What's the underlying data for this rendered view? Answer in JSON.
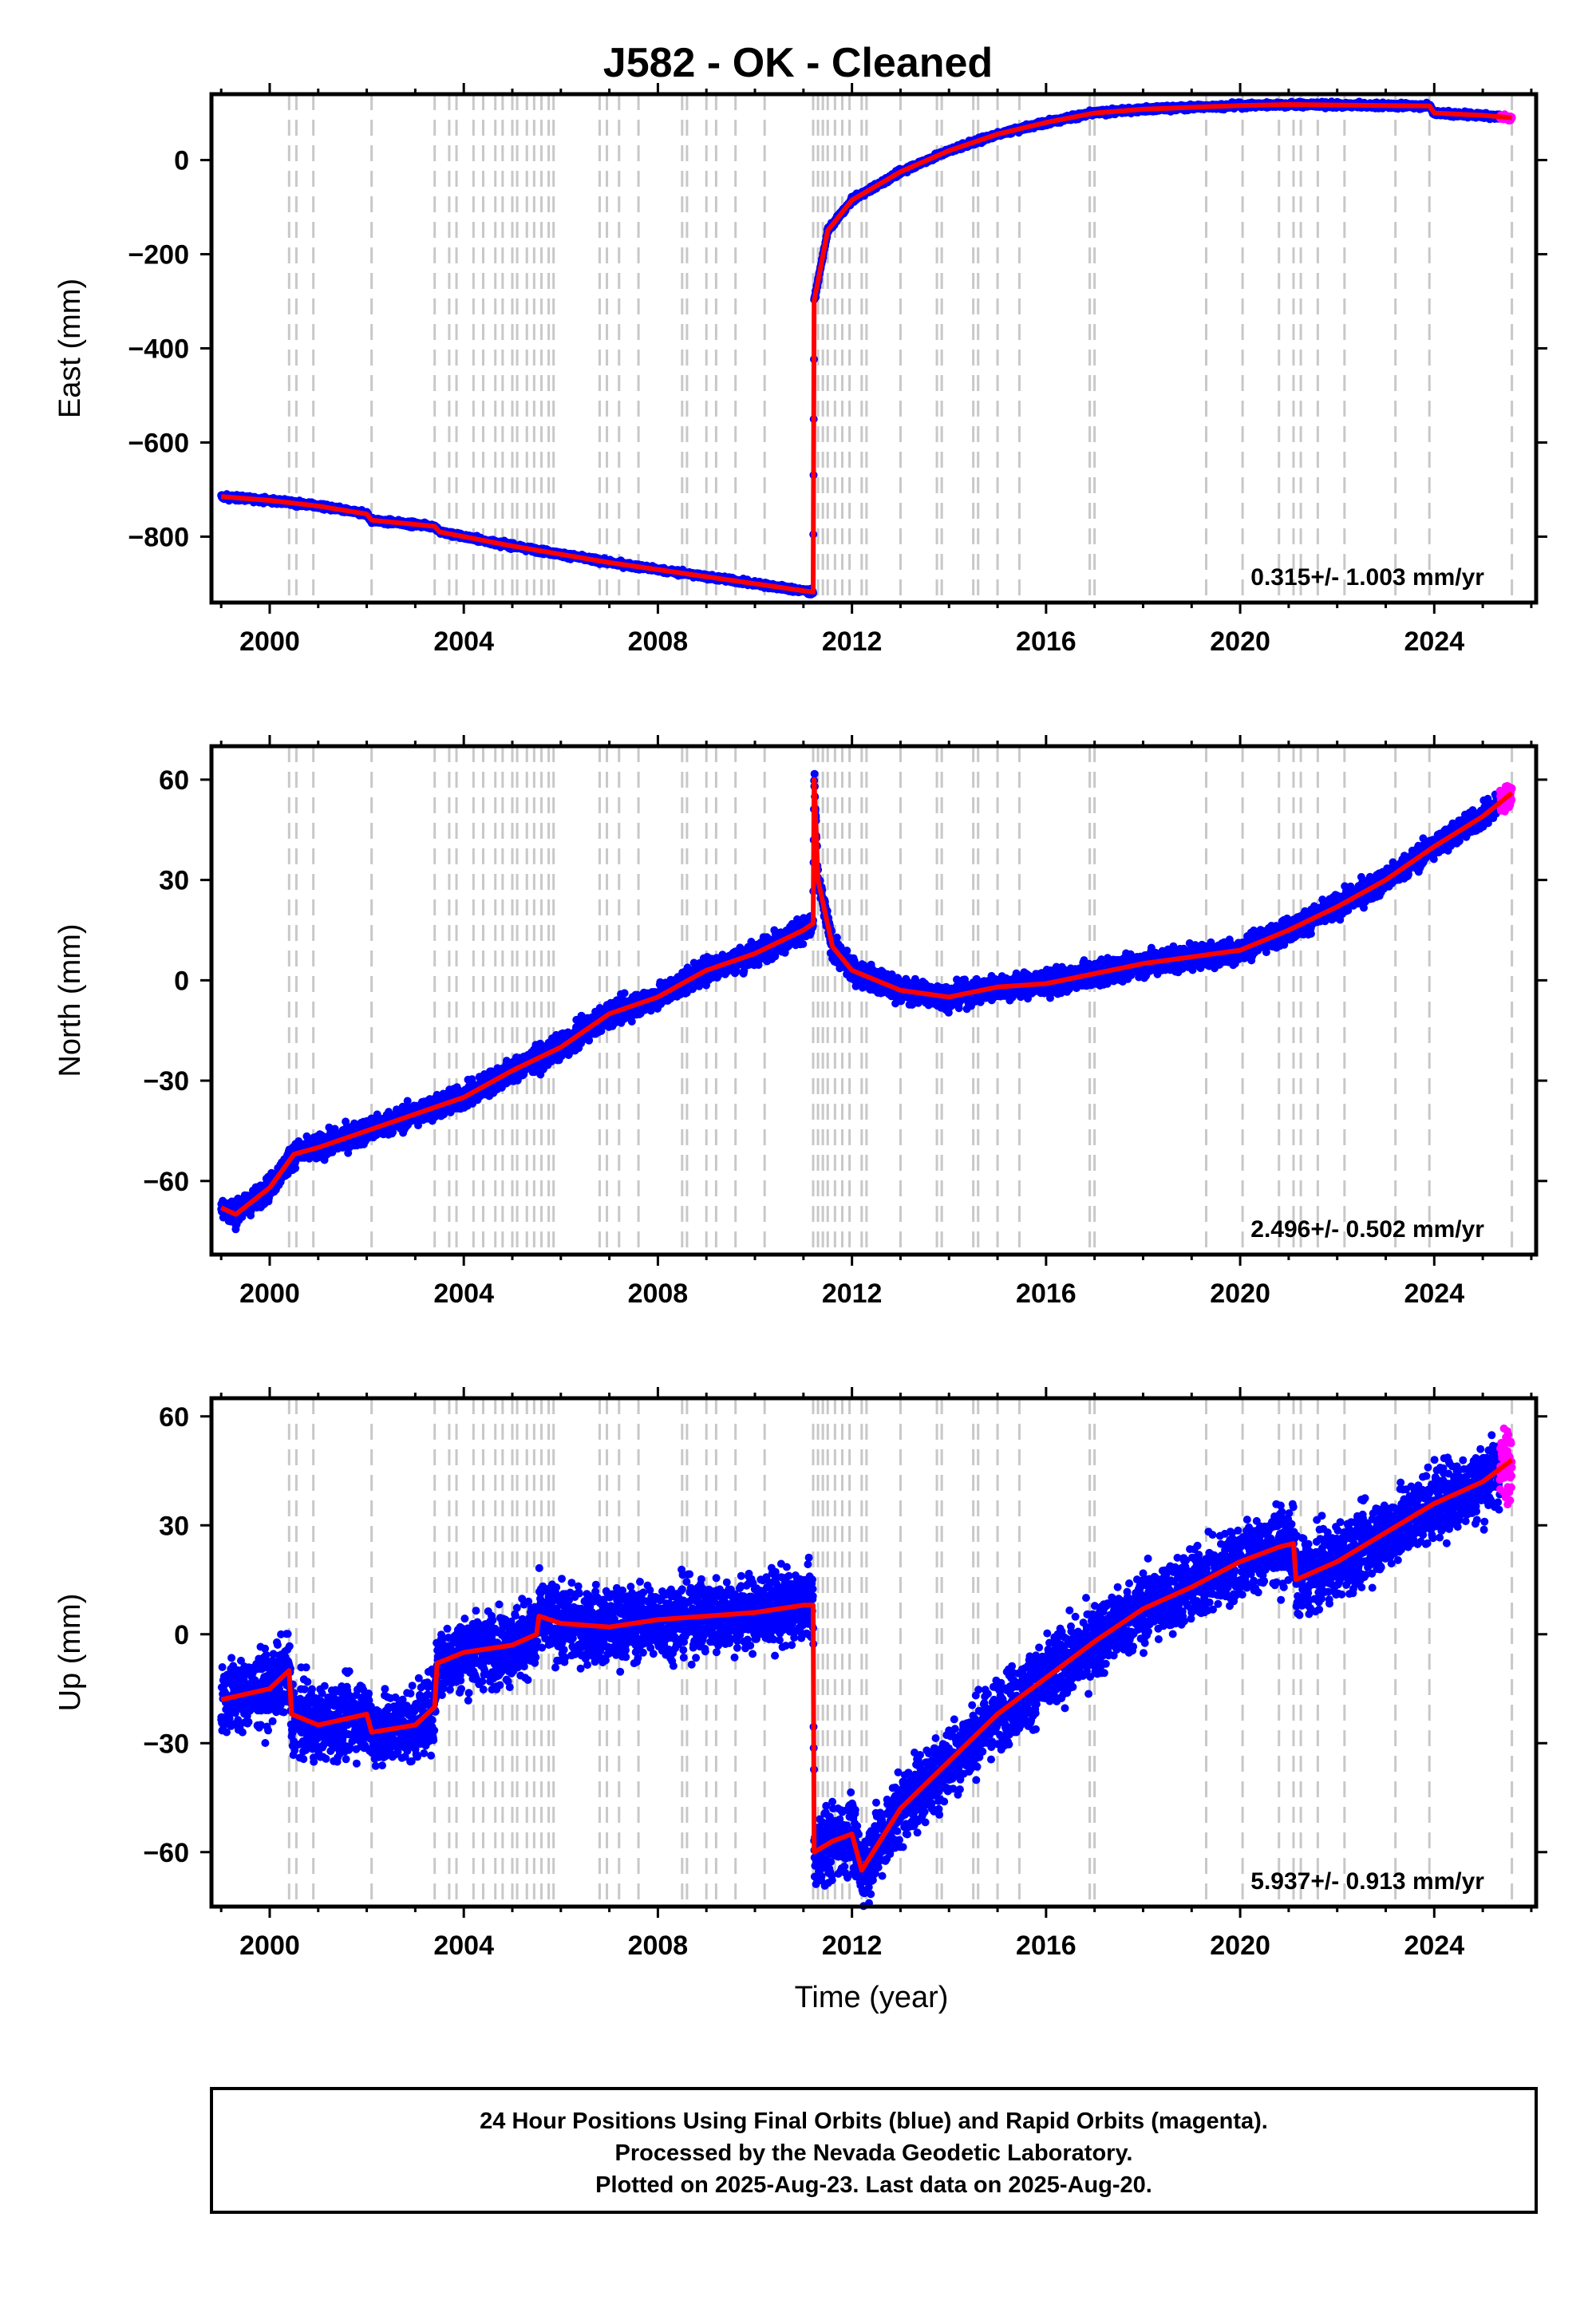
{
  "figure": {
    "title": "J582  - OK - Cleaned",
    "xlabel": "Time (year)",
    "footer": [
      "24 Hour Positions Using Final Orbits (blue) and Rapid Orbits (magenta).",
      "Processed by the Nevada Geodetic Laboratory.",
      "Plotted on 2025-Aug-23. Last data on 2025-Aug-20."
    ],
    "colors": {
      "final": "#0000ff",
      "rapid": "#ff00ff",
      "model": "#ff0000",
      "event": "#c8c8c8",
      "frame": "#000000"
    }
  },
  "chart_data": [
    {
      "type": "scatter",
      "name": "East",
      "ylabel": "East (mm)",
      "rate": "0.315+/- 1.003 mm/yr",
      "xlim": [
        1998.8,
        2026.1
      ],
      "ylim": [
        -940,
        140
      ],
      "xticks": [
        "2000",
        "2004",
        "2008",
        "2012",
        "2016",
        "2020",
        "2024"
      ],
      "yticks": [
        "0",
        "−200",
        "−400",
        "−600",
        "−800"
      ],
      "event_lines": [
        2000.4,
        2000.55,
        2000.9,
        2002.1,
        2003.4,
        2003.7,
        2003.85,
        2004.2,
        2004.4,
        2004.65,
        2004.8,
        2005.0,
        2005.1,
        2005.3,
        2005.45,
        2005.6,
        2005.75,
        2005.85,
        2006.8,
        2006.95,
        2007.2,
        2007.6,
        2008.5,
        2008.6,
        2009.0,
        2009.2,
        2009.6,
        2010.2,
        2011.2,
        2011.3,
        2011.4,
        2011.5,
        2011.65,
        2011.8,
        2011.95,
        2012.2,
        2012.3,
        2013.0,
        2013.75,
        2013.85,
        2014.5,
        2014.6,
        2015.0,
        2015.45,
        2016.9,
        2017.0,
        2019.3,
        2020.05,
        2020.8,
        2021.1,
        2021.25,
        2021.6,
        2022.15,
        2023.2,
        2023.9,
        2025.6
      ],
      "model": [
        [
          1999.0,
          -715
        ],
        [
          2000.0,
          -723
        ],
        [
          2001.0,
          -735
        ],
        [
          2002.0,
          -752
        ],
        [
          2002.1,
          -765
        ],
        [
          2003.4,
          -778
        ],
        [
          2003.5,
          -790
        ],
        [
          2005.0,
          -820
        ],
        [
          2007.0,
          -855
        ],
        [
          2009.0,
          -885
        ],
        [
          2011.2,
          -918
        ],
        [
          2011.22,
          -300
        ],
        [
          2011.5,
          -150
        ],
        [
          2012.0,
          -85
        ],
        [
          2013.0,
          -25
        ],
        [
          2014.0,
          20
        ],
        [
          2015.0,
          55
        ],
        [
          2016.0,
          80
        ],
        [
          2017.0,
          100
        ],
        [
          2018.0,
          108
        ],
        [
          2019.0,
          112
        ],
        [
          2020.0,
          116
        ],
        [
          2021.0,
          118
        ],
        [
          2022.0,
          117
        ],
        [
          2023.0,
          116
        ],
        [
          2023.9,
          115
        ],
        [
          2024.0,
          100
        ],
        [
          2025.0,
          95
        ],
        [
          2025.6,
          90
        ]
      ],
      "noise_mm": 4,
      "rapid_from": 2025.35
    },
    {
      "type": "scatter",
      "name": "North",
      "ylabel": "North (mm)",
      "rate": "2.496+/- 0.502 mm/yr",
      "xlim": [
        1998.8,
        2026.1
      ],
      "ylim": [
        -82,
        70
      ],
      "xticks": [
        "2000",
        "2004",
        "2008",
        "2012",
        "2016",
        "2020",
        "2024"
      ],
      "yticks": [
        "60",
        "30",
        "0",
        "−30",
        "−60"
      ],
      "event_lines": [
        2000.4,
        2000.55,
        2000.9,
        2002.1,
        2003.4,
        2003.7,
        2003.85,
        2004.2,
        2004.4,
        2004.65,
        2004.8,
        2005.0,
        2005.1,
        2005.3,
        2005.45,
        2005.6,
        2005.75,
        2005.85,
        2006.8,
        2006.95,
        2007.2,
        2007.6,
        2008.5,
        2008.6,
        2009.0,
        2009.2,
        2009.6,
        2010.2,
        2011.2,
        2011.3,
        2011.4,
        2011.5,
        2011.65,
        2011.8,
        2011.95,
        2012.2,
        2012.3,
        2013.0,
        2013.75,
        2013.85,
        2014.5,
        2014.6,
        2015.0,
        2015.45,
        2016.9,
        2017.0,
        2019.3,
        2020.05,
        2020.8,
        2021.1,
        2021.25,
        2021.6,
        2022.15,
        2023.2,
        2023.9,
        2025.6
      ],
      "model": [
        [
          1999.0,
          -68
        ],
        [
          1999.3,
          -70
        ],
        [
          2000.0,
          -62
        ],
        [
          2000.5,
          -52
        ],
        [
          2001.0,
          -50
        ],
        [
          2002.0,
          -45
        ],
        [
          2003.0,
          -40
        ],
        [
          2004.0,
          -35
        ],
        [
          2005.0,
          -27
        ],
        [
          2006.0,
          -20
        ],
        [
          2007.0,
          -10
        ],
        [
          2008.0,
          -5
        ],
        [
          2009.0,
          3
        ],
        [
          2010.0,
          8
        ],
        [
          2011.0,
          15
        ],
        [
          2011.2,
          17
        ],
        [
          2011.22,
          60
        ],
        [
          2011.3,
          30
        ],
        [
          2011.6,
          10
        ],
        [
          2012.0,
          3
        ],
        [
          2013.0,
          -3
        ],
        [
          2014.0,
          -5
        ],
        [
          2015.0,
          -2
        ],
        [
          2016.0,
          -1
        ],
        [
          2017.0,
          2
        ],
        [
          2018.0,
          5
        ],
        [
          2019.0,
          7
        ],
        [
          2020.0,
          9
        ],
        [
          2021.0,
          15
        ],
        [
          2022.0,
          22
        ],
        [
          2023.0,
          30
        ],
        [
          2024.0,
          40
        ],
        [
          2025.0,
          49
        ],
        [
          2025.6,
          56
        ]
      ],
      "noise_mm": 2.5,
      "rapid_from": 2025.35
    },
    {
      "type": "scatter",
      "name": "Up",
      "ylabel": "Up (mm)",
      "rate": "5.937+/- 0.913 mm/yr",
      "xlim": [
        1998.8,
        2026.1
      ],
      "ylim": [
        -75,
        65
      ],
      "xticks": [
        "2000",
        "2004",
        "2008",
        "2012",
        "2016",
        "2020",
        "2024"
      ],
      "yticks": [
        "60",
        "30",
        "0",
        "−30",
        "−60"
      ],
      "event_lines": [
        2000.4,
        2000.55,
        2000.9,
        2002.1,
        2003.4,
        2003.7,
        2003.85,
        2004.2,
        2004.4,
        2004.65,
        2004.8,
        2005.0,
        2005.1,
        2005.3,
        2005.45,
        2005.6,
        2005.75,
        2005.85,
        2006.8,
        2006.95,
        2007.2,
        2007.6,
        2008.5,
        2008.6,
        2009.0,
        2009.2,
        2009.6,
        2010.2,
        2011.2,
        2011.3,
        2011.4,
        2011.5,
        2011.65,
        2011.8,
        2011.95,
        2012.2,
        2012.3,
        2013.0,
        2013.75,
        2013.85,
        2014.5,
        2014.6,
        2015.0,
        2015.45,
        2016.9,
        2017.0,
        2019.3,
        2020.05,
        2020.8,
        2021.1,
        2021.25,
        2021.6,
        2022.15,
        2023.2,
        2023.9,
        2025.6
      ],
      "model": [
        [
          1999.0,
          -18
        ],
        [
          2000.0,
          -15
        ],
        [
          2000.4,
          -10
        ],
        [
          2000.45,
          -22
        ],
        [
          2001.0,
          -25
        ],
        [
          2002.0,
          -22
        ],
        [
          2002.1,
          -27
        ],
        [
          2003.0,
          -25
        ],
        [
          2003.4,
          -20
        ],
        [
          2003.45,
          -8
        ],
        [
          2004.0,
          -5
        ],
        [
          2005.0,
          -3
        ],
        [
          2005.5,
          0
        ],
        [
          2005.55,
          5
        ],
        [
          2006.0,
          3
        ],
        [
          2007.0,
          2
        ],
        [
          2008.0,
          4
        ],
        [
          2009.0,
          5
        ],
        [
          2010.0,
          6
        ],
        [
          2011.0,
          8
        ],
        [
          2011.2,
          8
        ],
        [
          2011.22,
          -60
        ],
        [
          2011.6,
          -57
        ],
        [
          2012.0,
          -55
        ],
        [
          2012.2,
          -65
        ],
        [
          2013.0,
          -48
        ],
        [
          2014.0,
          -35
        ],
        [
          2015.0,
          -22
        ],
        [
          2016.0,
          -12
        ],
        [
          2017.0,
          -2
        ],
        [
          2018.0,
          7
        ],
        [
          2019.0,
          13
        ],
        [
          2020.0,
          20
        ],
        [
          2020.8,
          24
        ],
        [
          2021.1,
          25
        ],
        [
          2021.15,
          15
        ],
        [
          2022.0,
          20
        ],
        [
          2023.0,
          28
        ],
        [
          2024.0,
          36
        ],
        [
          2025.0,
          42
        ],
        [
          2025.6,
          48
        ]
      ],
      "noise_mm": 7,
      "rapid_from": 2025.35
    }
  ]
}
